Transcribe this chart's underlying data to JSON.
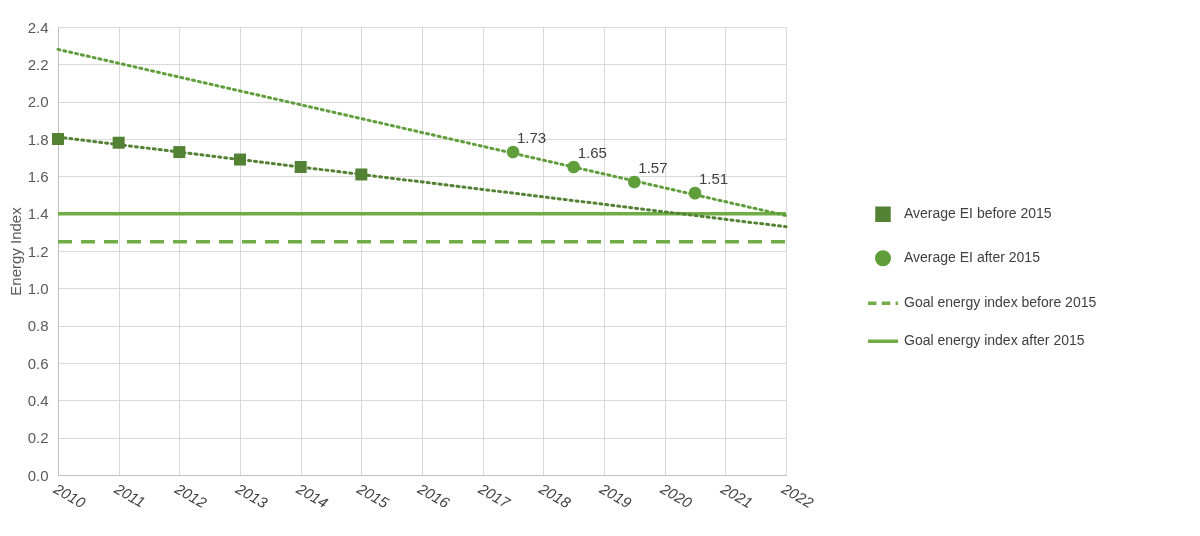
{
  "chart_data": {
    "type": "scatter",
    "ylabel": "Energy Index",
    "xlim": [
      2010,
      2022
    ],
    "xticks": [
      2010,
      2011,
      2012,
      2013,
      2014,
      2015,
      2016,
      2017,
      2018,
      2019,
      2020,
      2021,
      2022
    ],
    "ylim": [
      0,
      2.4
    ],
    "yticks": [
      {
        "value": 0,
        "label": "0.0"
      },
      0.2,
      0.4,
      0.6,
      0.8,
      {
        "value": 1,
        "label": "1.0"
      },
      1.2,
      1.4,
      1.6,
      1.8,
      {
        "value": 2,
        "label": "2.0"
      },
      2.2,
      2.4
    ],
    "grid": true,
    "legend": "right",
    "series": [
      {
        "name": "Average EI before 2015",
        "marker": "square",
        "color": "#548235",
        "x": [
          2010,
          2011,
          2012,
          2013,
          2014,
          2015
        ],
        "values": [
          1.8,
          1.78,
          1.73,
          1.69,
          1.65,
          1.61
        ]
      },
      {
        "name": "Average EI after 2015",
        "marker": "circle",
        "color": "#5f9e3a",
        "x": [
          2017.5,
          2018.5,
          2019.5,
          2020.5
        ],
        "values": [
          1.73,
          1.65,
          1.57,
          1.51
        ],
        "value_labels": [
          "1.73",
          "1.65",
          "1.57",
          "1.51"
        ]
      },
      {
        "name": "Goal energy index before 2015",
        "type": "line",
        "line_style": "dashed",
        "color": "#70ad47",
        "x": [
          2010,
          2022
        ],
        "values": [
          1.25,
          1.25
        ]
      },
      {
        "name": "Goal energy index after 2015",
        "type": "line",
        "line_style": "solid",
        "color": "#70ad47",
        "x": [
          2010,
          2022
        ],
        "values": [
          1.4,
          1.4
        ]
      },
      {
        "type": "line",
        "line_style": "dotted",
        "color": "#548235",
        "x": [
          2010,
          2022
        ],
        "values": [
          1.81,
          1.33
        ]
      },
      {
        "type": "line",
        "line_style": "dotted",
        "color": "#5f9e3a",
        "x": [
          2010,
          2022
        ],
        "values": [
          2.28,
          1.39
        ]
      }
    ]
  }
}
